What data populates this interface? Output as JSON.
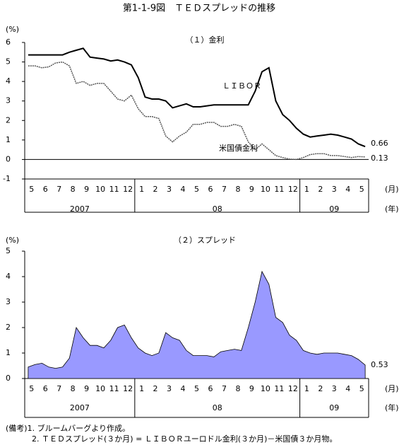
{
  "title": "第1-1-9図　ＴＥＤスプレッドの推移",
  "notes": [
    "(備考)1. ブルームバーグより作成。",
    "2. ＴＥＤスプレッド(３か月) = ＬＩＢＯＲユーロドル金利(３か月)－米国債３か月物。"
  ],
  "chart_data": [
    {
      "type": "line",
      "title": "（１）金利",
      "y_label": "(%)",
      "x_label": "(月)",
      "year_label": "(年)",
      "categories": [
        "5",
        null,
        "6",
        null,
        "7",
        null,
        "8",
        null,
        "9",
        null,
        "10",
        null,
        "11",
        null,
        "12",
        null,
        "1",
        null,
        "2",
        null,
        "3",
        null,
        "4",
        null,
        "5",
        null,
        "6",
        null,
        "7",
        null,
        "8",
        null,
        "9",
        null,
        "10",
        null,
        "11",
        null,
        "12",
        null,
        "1",
        null,
        "2",
        null,
        "3",
        null,
        "4",
        null,
        "5",
        null
      ],
      "years": [
        "2007",
        "08",
        "09"
      ],
      "ylim": [
        -1,
        6
      ],
      "yticks": [
        -1,
        0,
        1,
        2,
        3,
        4,
        5,
        6
      ],
      "annotations": [
        "ＬＩＢＯＲ",
        "米国債金利"
      ],
      "series": [
        {
          "name": "ＬＩＢＯＲ",
          "color": "#000000",
          "values": [
            5.36,
            5.36,
            5.36,
            5.36,
            5.36,
            5.36,
            5.5,
            5.6,
            5.7,
            5.25,
            5.2,
            5.15,
            5.05,
            5.1,
            5.0,
            4.85,
            4.2,
            3.2,
            3.1,
            3.1,
            3.0,
            2.65,
            2.75,
            2.85,
            2.7,
            2.7,
            2.75,
            2.8,
            2.8,
            2.8,
            2.8,
            2.8,
            2.8,
            3.5,
            4.5,
            4.7,
            3.0,
            2.3,
            2.0,
            1.6,
            1.3,
            1.15,
            1.2,
            1.25,
            1.3,
            1.25,
            1.15,
            1.05,
            0.8,
            0.66
          ]
        },
        {
          "name": "米国債金利",
          "color": "#555555",
          "values": [
            4.8,
            4.8,
            4.7,
            4.75,
            4.95,
            5.0,
            4.8,
            3.9,
            4.0,
            3.8,
            3.9,
            3.9,
            3.5,
            3.1,
            3.0,
            3.3,
            2.6,
            2.2,
            2.2,
            2.1,
            1.2,
            0.9,
            1.2,
            1.4,
            1.8,
            1.8,
            1.9,
            1.9,
            1.7,
            1.7,
            1.8,
            1.7,
            0.9,
            0.5,
            0.8,
            0.5,
            0.2,
            0.1,
            0.02,
            0.0,
            0.1,
            0.25,
            0.3,
            0.3,
            0.2,
            0.2,
            0.15,
            0.1,
            0.15,
            0.13
          ]
        }
      ]
    },
    {
      "type": "area",
      "title": "（２）スプレッド",
      "y_label": "(%)",
      "x_label": "(月)",
      "year_label": "(年)",
      "categories": [
        "5",
        null,
        "6",
        null,
        "7",
        null,
        "8",
        null,
        "9",
        null,
        "10",
        null,
        "11",
        null,
        "12",
        null,
        "1",
        null,
        "2",
        null,
        "3",
        null,
        "4",
        null,
        "5",
        null,
        "6",
        null,
        "7",
        null,
        "8",
        null,
        "9",
        null,
        "10",
        null,
        "11",
        null,
        "12",
        null,
        "1",
        null,
        "2",
        null,
        "3",
        null,
        "4",
        null,
        "5",
        null
      ],
      "years": [
        "2007",
        "08",
        "09"
      ],
      "ylim": [
        0,
        5
      ],
      "yticks": [
        0,
        1,
        2,
        3,
        4,
        5
      ],
      "series": [
        {
          "name": "スプレッド",
          "color": "#9999ff",
          "values": [
            0.45,
            0.55,
            0.6,
            0.45,
            0.4,
            0.45,
            0.8,
            2.0,
            1.6,
            1.3,
            1.3,
            1.2,
            1.5,
            2.0,
            2.1,
            1.6,
            1.2,
            1.0,
            0.9,
            1.0,
            1.8,
            1.6,
            1.5,
            1.1,
            0.9,
            0.9,
            0.9,
            0.85,
            1.05,
            1.1,
            1.15,
            1.1,
            2.0,
            3.0,
            4.2,
            3.7,
            2.4,
            2.2,
            1.7,
            1.5,
            1.1,
            1.0,
            0.95,
            1.0,
            1.0,
            1.0,
            0.95,
            0.9,
            0.75,
            0.53
          ]
        }
      ]
    }
  ]
}
